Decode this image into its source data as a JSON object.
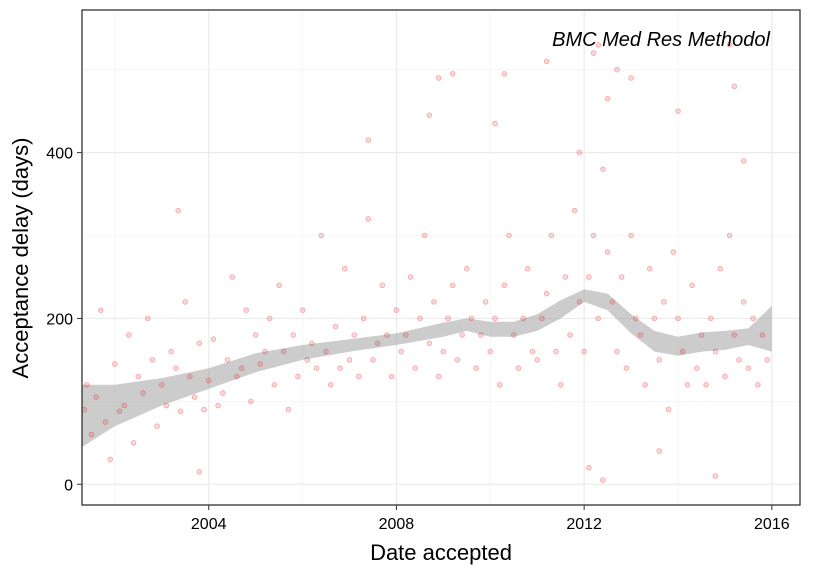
{
  "chart_data": {
    "type": "scatter",
    "annotation": "BMC Med Res Methodol",
    "xlabel": "Date accepted",
    "ylabel": "Acceptance delay (days)",
    "xlim": [
      2001.3,
      2016.6
    ],
    "ylim": [
      -25,
      572
    ],
    "x_ticks": [
      2004,
      2008,
      2012,
      2016
    ],
    "x_tick_labels": [
      "2004",
      "2008",
      "2012",
      "2016"
    ],
    "y_ticks": [
      0,
      200,
      400
    ],
    "y_tick_labels": [
      "0",
      "200",
      "400"
    ],
    "grid": true,
    "legend": "none",
    "colors": {
      "points": "#e8212a",
      "band": "#999999",
      "grid": "#ebebeb",
      "border": "#333333"
    },
    "smooth": {
      "x": [
        2001.3,
        2002,
        2003,
        2004,
        2005,
        2006,
        2007,
        2008,
        2009,
        2009.5,
        2010,
        2010.5,
        2011,
        2011.5,
        2012,
        2012.5,
        2013,
        2013.5,
        2014,
        2014.5,
        2015,
        2015.5,
        2016
      ],
      "lower": [
        45,
        70,
        95,
        115,
        135,
        150,
        160,
        168,
        178,
        185,
        178,
        178,
        185,
        200,
        220,
        210,
        182,
        160,
        155,
        160,
        162,
        168,
        160
      ],
      "upper": [
        120,
        120,
        128,
        140,
        158,
        168,
        175,
        182,
        195,
        200,
        196,
        196,
        205,
        222,
        235,
        230,
        205,
        185,
        178,
        183,
        185,
        188,
        215
      ]
    },
    "series": [
      {
        "x": [
          2001.35,
          2001.4,
          2001.5,
          2001.6,
          2001.7,
          2001.8,
          2001.9,
          2002.0,
          2002.1,
          2002.2,
          2002.3,
          2002.4,
          2002.5,
          2002.6,
          2002.7,
          2002.8,
          2002.9,
          2003.0,
          2003.1,
          2003.2,
          2003.3,
          2003.4,
          2003.5,
          2003.6,
          2003.7,
          2003.8,
          2003.9,
          2004.0,
          2004.1,
          2004.2,
          2004.3,
          2004.4,
          2004.5,
          2004.6,
          2004.7,
          2004.8,
          2004.9,
          2005.0,
          2005.1,
          2005.2,
          2005.3,
          2005.4,
          2005.5,
          2005.6,
          2005.7,
          2005.8,
          2005.9,
          2006.0,
          2006.1,
          2006.2,
          2006.3,
          2006.4,
          2006.5,
          2006.6,
          2006.7,
          2006.8,
          2006.9,
          2007.0,
          2007.1,
          2007.2,
          2007.3,
          2007.4,
          2007.5,
          2007.6,
          2007.7,
          2007.8,
          2007.9,
          2008.0,
          2008.1,
          2008.2,
          2008.3,
          2008.4,
          2008.5,
          2008.6,
          2008.7,
          2008.8,
          2008.9,
          2009.0,
          2009.1,
          2009.2,
          2009.3,
          2009.4,
          2009.5,
          2009.6,
          2009.7,
          2009.8,
          2009.9,
          2010.0,
          2010.1,
          2010.2,
          2010.3,
          2010.4,
          2010.5,
          2010.6,
          2010.7,
          2010.8,
          2010.9,
          2011.0,
          2011.1,
          2011.2,
          2011.3,
          2011.4,
          2011.5,
          2011.6,
          2011.7,
          2011.8,
          2011.9,
          2012.0,
          2012.1,
          2012.2,
          2012.3,
          2012.4,
          2012.5,
          2012.6,
          2012.7,
          2012.8,
          2012.9,
          2013.0,
          2013.1,
          2013.2,
          2013.3,
          2013.4,
          2013.5,
          2013.6,
          2013.7,
          2013.8,
          2013.9,
          2014.0,
          2014.1,
          2014.2,
          2014.3,
          2014.4,
          2014.5,
          2014.6,
          2014.7,
          2014.8,
          2014.9,
          2015.0,
          2015.1,
          2015.2,
          2015.3,
          2015.4,
          2015.5,
          2015.6,
          2015.7,
          2015.8,
          2015.9,
          2003.35,
          2008.9,
          2009.2,
          2010.1,
          2010.3,
          2011.2,
          2012.2,
          2012.3,
          2012.7,
          2013.0,
          2015.1,
          2015.2,
          2007.4,
          2008.7,
          2011.9,
          2012.5,
          2014.0,
          2015.4,
          2003.8,
          2012.4,
          2012.1,
          2013.6,
          2014.8
        ],
        "y": [
          90,
          120,
          60,
          105,
          210,
          75,
          30,
          145,
          88,
          95,
          180,
          50,
          130,
          110,
          200,
          150,
          70,
          120,
          95,
          160,
          140,
          88,
          220,
          130,
          105,
          170,
          90,
          125,
          175,
          95,
          110,
          150,
          250,
          130,
          140,
          210,
          100,
          180,
          145,
          160,
          200,
          120,
          240,
          160,
          90,
          180,
          130,
          210,
          150,
          170,
          140,
          300,
          160,
          120,
          190,
          140,
          260,
          150,
          180,
          130,
          200,
          320,
          150,
          170,
          240,
          180,
          130,
          210,
          160,
          180,
          250,
          140,
          200,
          300,
          170,
          220,
          130,
          160,
          200,
          240,
          150,
          180,
          260,
          200,
          140,
          180,
          220,
          160,
          200,
          120,
          240,
          300,
          180,
          140,
          200,
          260,
          160,
          150,
          200,
          230,
          300,
          160,
          120,
          250,
          180,
          330,
          220,
          160,
          250,
          300,
          200,
          380,
          280,
          220,
          160,
          250,
          140,
          300,
          200,
          180,
          120,
          260,
          200,
          150,
          220,
          90,
          280,
          200,
          160,
          120,
          240,
          140,
          180,
          120,
          200,
          160,
          260,
          130,
          300,
          180,
          150,
          220,
          140,
          200,
          120,
          180,
          150,
          330,
          490,
          495,
          435,
          495,
          510,
          520,
          530,
          500,
          490,
          530,
          480,
          415,
          445,
          400,
          465,
          450,
          390,
          15,
          5,
          20,
          40,
          10
        ]
      }
    ]
  }
}
